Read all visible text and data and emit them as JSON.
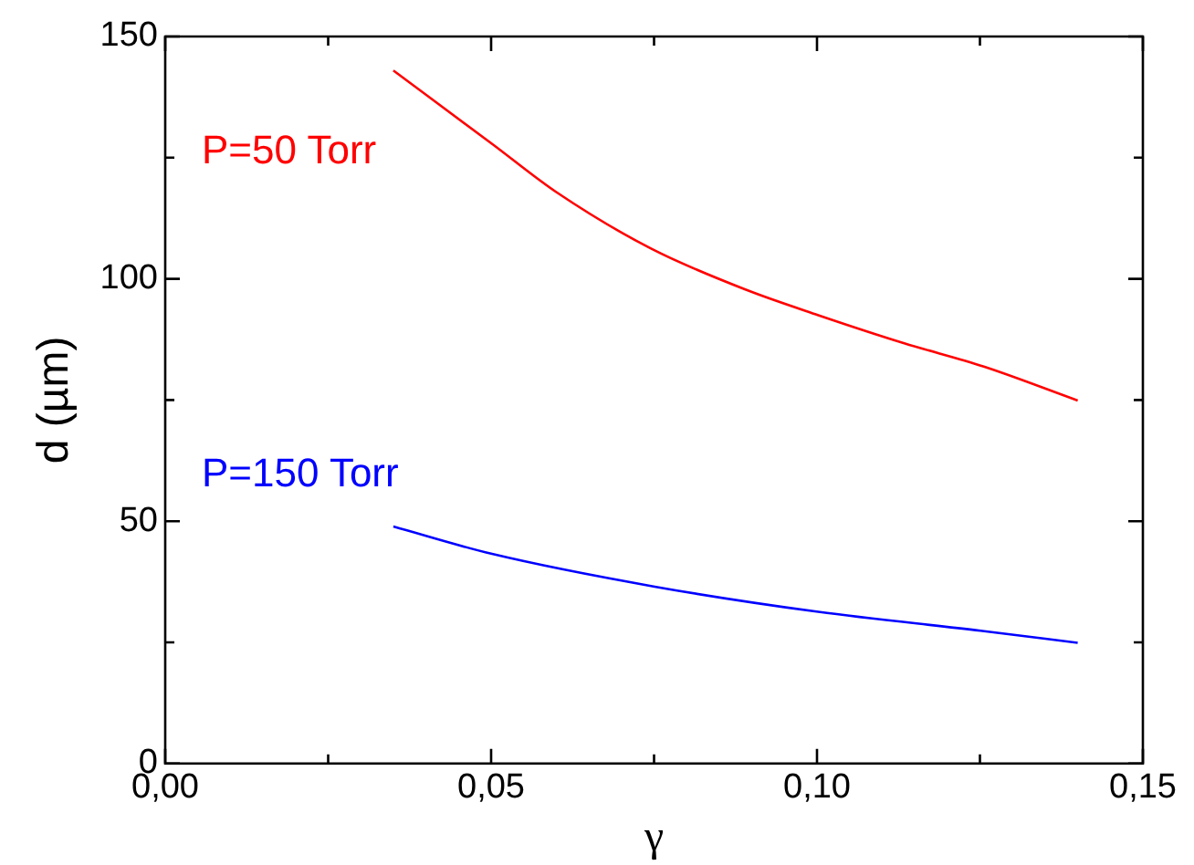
{
  "chart_data": {
    "type": "line",
    "xlabel": "γ",
    "ylabel": "d (µm)",
    "xlim": [
      0,
      0.15
    ],
    "xticks": [
      {
        "value": 0,
        "label": "0,00"
      },
      {
        "value": 0.025,
        "label": null
      },
      {
        "value": 0.05,
        "label": "0,05"
      },
      {
        "value": 0.075,
        "label": null
      },
      {
        "value": 0.1,
        "label": "0,10"
      },
      {
        "value": 0.125,
        "label": null
      },
      {
        "value": 0.15,
        "label": "0,15"
      }
    ],
    "ylim": [
      0,
      150
    ],
    "yticks": [
      0,
      {
        "value": 25,
        "label": null
      },
      50,
      {
        "value": 75,
        "label": null
      },
      100,
      {
        "value": 125,
        "label": null
      },
      150
    ],
    "grid": false,
    "legend": false,
    "marker": "none",
    "line_style": "solid",
    "series": [
      {
        "name": "P=50 Torr",
        "color": "#ff0000",
        "x": [
          0.035,
          0.0503,
          0.06,
          0.0746,
          0.0892,
          0.1002,
          0.1134,
          0.1256,
          0.14
        ],
        "values": [
          143,
          127.7,
          117.9,
          106.2,
          97.7,
          92.5,
          86.7,
          81.9,
          74.9
        ]
      },
      {
        "name": "P=150 Torr",
        "color": "#0000ff",
        "x": [
          0.035,
          0.05,
          0.0751,
          0.1002,
          0.1251,
          0.14
        ],
        "values": [
          48.9,
          43.3,
          36.5,
          31.3,
          27.4,
          24.9
        ]
      }
    ]
  }
}
